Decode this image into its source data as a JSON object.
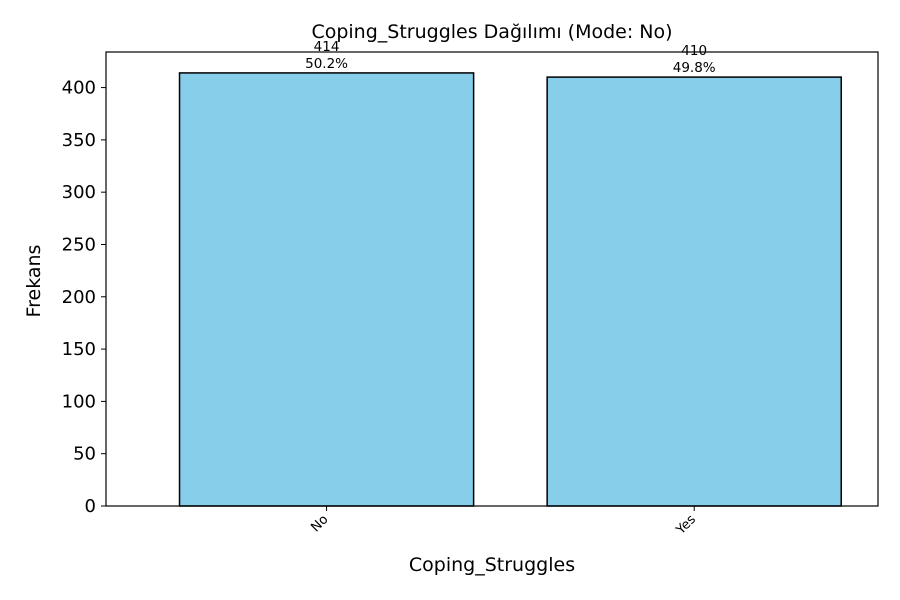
{
  "chart_data": {
    "type": "bar",
    "title": "Coping_Struggles Dağılımı (Mode: No)",
    "xlabel": "Coping_Struggles",
    "ylabel": "Frekans",
    "categories": [
      "No",
      "Yes"
    ],
    "values": [
      414,
      410
    ],
    "value_labels": [
      "414",
      "410"
    ],
    "percent_labels": [
      "50.2%",
      "49.8%"
    ],
    "ylim": [
      0,
      434
    ],
    "yticks": [
      0,
      50,
      100,
      150,
      200,
      250,
      300,
      350,
      400
    ],
    "grid": false,
    "legend": "none",
    "bar_color": "#87ceeb",
    "bar_edge_color": "#000000"
  }
}
